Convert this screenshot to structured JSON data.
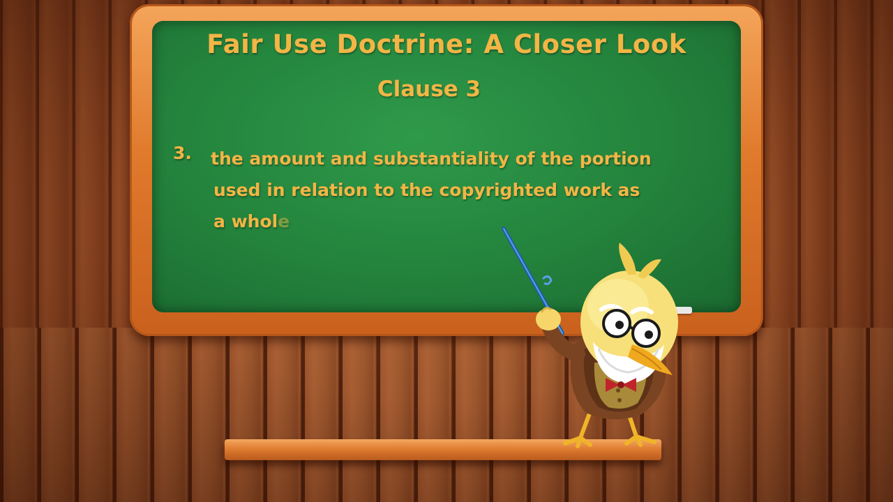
{
  "slide": {
    "title": "Fair Use Doctrine: A Closer Look",
    "subtitle": "Clause 3",
    "clause": {
      "number": "3.",
      "lines": [
        "the amount and substantiality of the portion",
        "used in relation to the copyrighted work as",
        "a whol"
      ],
      "faded_tail": "e"
    }
  },
  "colors": {
    "chalk_text": "#f3b545",
    "board_green": "#23823c",
    "frame_orange": "#e07a2c"
  },
  "mascot": {
    "icon": "professor-chick-icon",
    "prop": "pointer-stick-icon"
  }
}
